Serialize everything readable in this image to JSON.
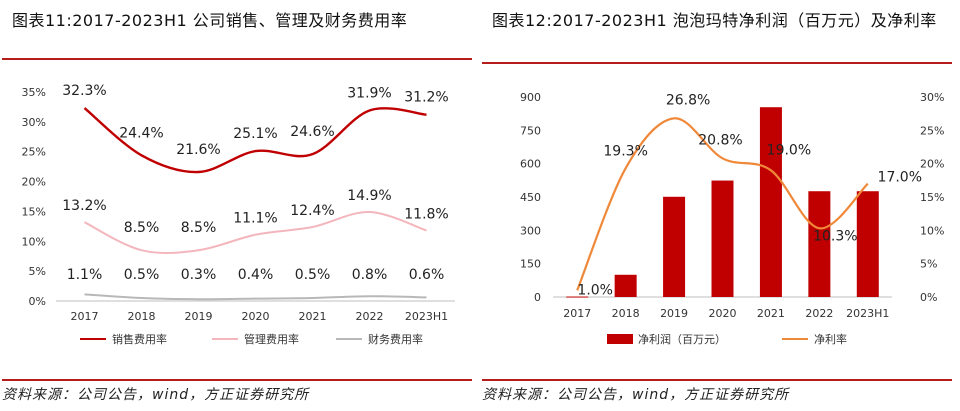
{
  "left": {
    "title": "图表11:2017-2023H1 公司销售、管理及财务费用率",
    "source": "资料来源：公司公告，wind，方正证券研究所",
    "chart_data": {
      "type": "line",
      "categories": [
        "2017",
        "2018",
        "2019",
        "2020",
        "2021",
        "2022",
        "2023H1"
      ],
      "ylim": [
        0,
        35
      ],
      "yticks": [
        "0%",
        "5%",
        "10%",
        "15%",
        "20%",
        "25%",
        "30%",
        "35%"
      ],
      "grid": false,
      "legend_position": "bottom",
      "series": [
        {
          "name": "销售费用率",
          "values": [
            32.3,
            24.4,
            21.6,
            25.1,
            24.6,
            31.9,
            31.2
          ],
          "labels": [
            "32.3%",
            "24.4%",
            "21.6%",
            "25.1%",
            "24.6%",
            "31.9%",
            "31.2%"
          ],
          "color": "#c00000"
        },
        {
          "name": "管理费用率",
          "values": [
            13.2,
            8.5,
            8.5,
            11.1,
            12.4,
            14.9,
            11.8
          ],
          "labels": [
            "13.2%",
            "8.5%",
            "8.5%",
            "11.1%",
            "12.4%",
            "14.9%",
            "11.8%"
          ],
          "color": "#f4b6bd"
        },
        {
          "name": "财务费用率",
          "values": [
            1.1,
            0.5,
            0.3,
            0.4,
            0.5,
            0.8,
            0.6
          ],
          "labels": [
            "1.1%",
            "0.5%",
            "0.3%",
            "0.4%",
            "0.5%",
            "0.8%",
            "0.6%"
          ],
          "color": "#b8b8b8"
        }
      ]
    }
  },
  "right": {
    "title": "图表12:2017-2023H1 泡泡玛特净利润（百万元）及净利率",
    "source": "资料来源：公司公告，wind，方正证券研究所",
    "chart_data": {
      "type": "bar",
      "categories": [
        "2017",
        "2018",
        "2019",
        "2020",
        "2021",
        "2022",
        "2023H1"
      ],
      "ylim": [
        0,
        900
      ],
      "yticks": [
        "0",
        "150",
        "300",
        "450",
        "600",
        "750",
        "900"
      ],
      "y2lim": [
        0,
        30
      ],
      "y2ticks": [
        "0%",
        "5%",
        "10%",
        "15%",
        "20%",
        "25%",
        "30%"
      ],
      "grid": false,
      "legend_position": "bottom",
      "series": [
        {
          "name": "净利润（百万元）",
          "type": "bar",
          "axis": "left",
          "values": [
            2,
            100,
            451,
            524,
            854,
            476,
            476
          ],
          "color": "#c00000"
        },
        {
          "name": "净利率",
          "type": "line",
          "axis": "right",
          "values": [
            1.0,
            19.3,
            26.8,
            20.8,
            19.0,
            10.3,
            17.0
          ],
          "labels": [
            "1.0%",
            "19.3%",
            "26.8%",
            "20.8%",
            "19.0%",
            "10.3%",
            "17.0%"
          ],
          "color": "#f0883a"
        }
      ]
    }
  }
}
